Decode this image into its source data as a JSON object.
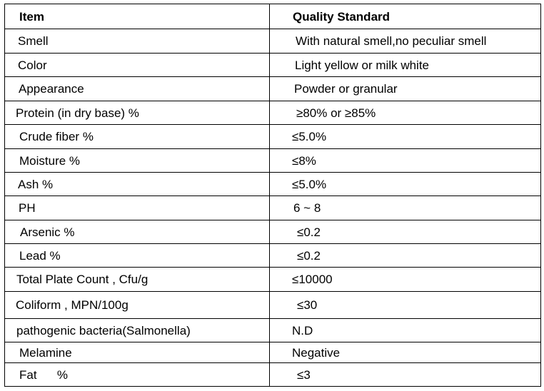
{
  "table": {
    "headers": {
      "item": "Item",
      "standard": "Quality Standard"
    },
    "rows": [
      {
        "item": "Smell",
        "standard": "With natural smell,no peculiar smell"
      },
      {
        "item": "Color",
        "standard": "Light yellow or milk white"
      },
      {
        "item": "Appearance",
        "standard": "Powder or granular"
      },
      {
        "item": "Protein (in dry base) %",
        "standard": "≥80% or ≥85%"
      },
      {
        "item": "Crude fiber %",
        "standard": "≤5.0%"
      },
      {
        "item": "Moisture %",
        "standard": "≤8%"
      },
      {
        "item": "Ash %",
        "standard": "≤5.0%"
      },
      {
        "item": "PH",
        "standard": "6 ~ 8"
      },
      {
        "item": "Arsenic %",
        "standard": "≤0.2"
      },
      {
        "item": "Lead %",
        "standard": "≤0.2"
      },
      {
        "item": "Total Plate Count , Cfu/g",
        "standard": "≤10000"
      },
      {
        "item": "Coliform , MPN/100g",
        "standard": "≤30"
      },
      {
        "item": "pathogenic bacteria(Salmonella)",
        "standard": "N.D"
      },
      {
        "item": "Melamine",
        "standard": "Negative"
      },
      {
        "item": "Fat      %",
        "standard": "≤3"
      }
    ]
  }
}
